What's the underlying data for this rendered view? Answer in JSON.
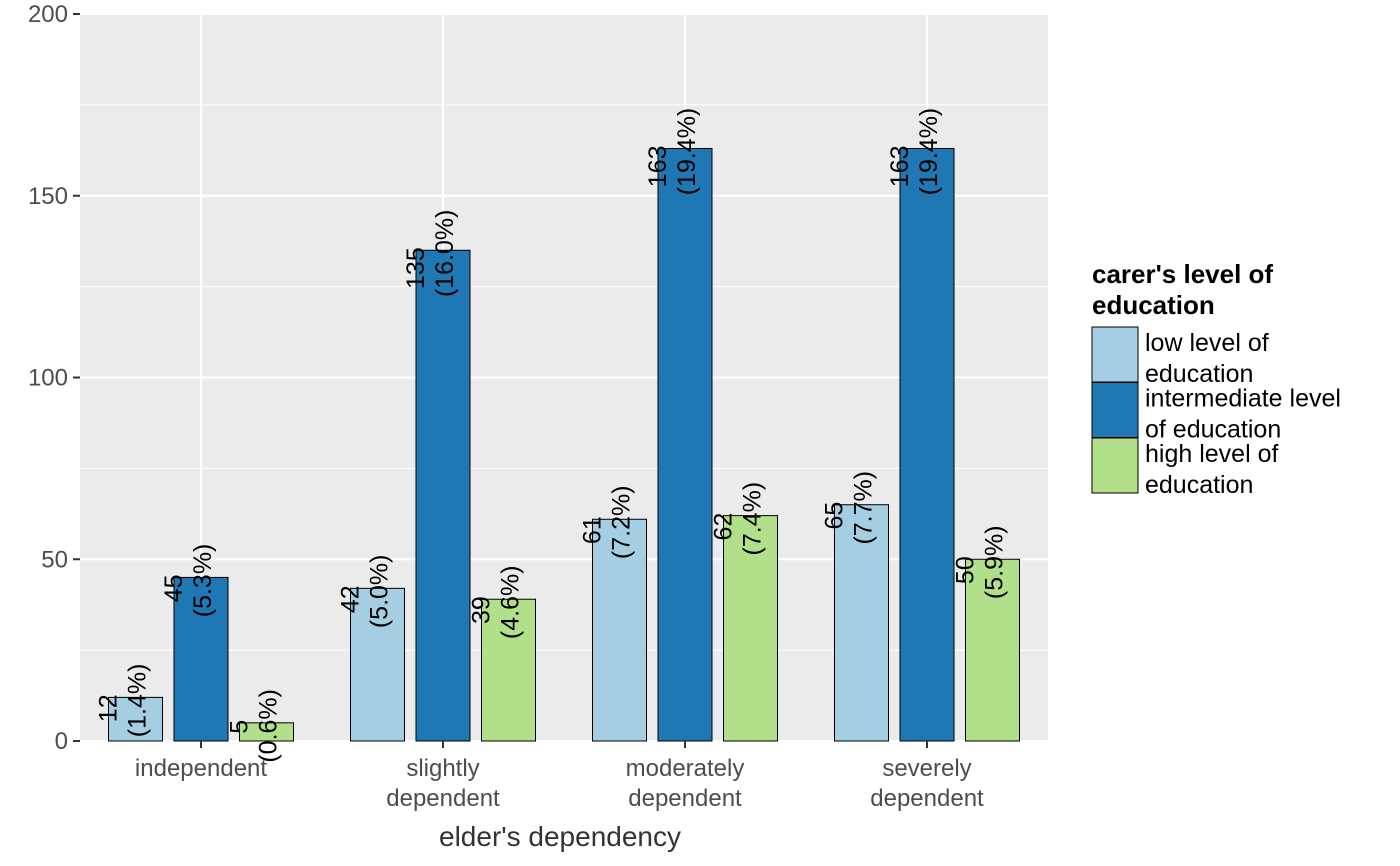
{
  "chart_data": {
    "type": "bar",
    "title": "",
    "xlabel": "elder's dependency",
    "ylabel": "",
    "ylim": [
      0,
      200
    ],
    "yticks": [
      0,
      50,
      100,
      150,
      200
    ],
    "grid": true,
    "legend_position": "right",
    "categories": [
      [
        "independent"
      ],
      [
        "slightly",
        "dependent"
      ],
      [
        "moderately",
        "dependent"
      ],
      [
        "severely",
        "dependent"
      ]
    ],
    "legend": {
      "title": [
        "carer's level of",
        "education"
      ]
    },
    "series": [
      {
        "name": [
          "low level of",
          "education"
        ],
        "color": "#a6cee3",
        "values": [
          12,
          42,
          61,
          65
        ],
        "percents": [
          "(1.4%)",
          "(5.0%)",
          "(7.2%)",
          "(7.7%)"
        ]
      },
      {
        "name": [
          "intermediate level",
          "of education"
        ],
        "color": "#1f78b4",
        "values": [
          45,
          135,
          163,
          163
        ],
        "percents": [
          "(5.3%)",
          "(16.0%)",
          "(19.4%)",
          "(19.4%)"
        ]
      },
      {
        "name": [
          "high level of",
          "education"
        ],
        "color": "#b2df8a",
        "values": [
          5,
          39,
          62,
          50
        ],
        "percents": [
          "(0.6%)",
          "(4.6%)",
          "(7.4%)",
          "(5.9%)"
        ]
      }
    ]
  }
}
